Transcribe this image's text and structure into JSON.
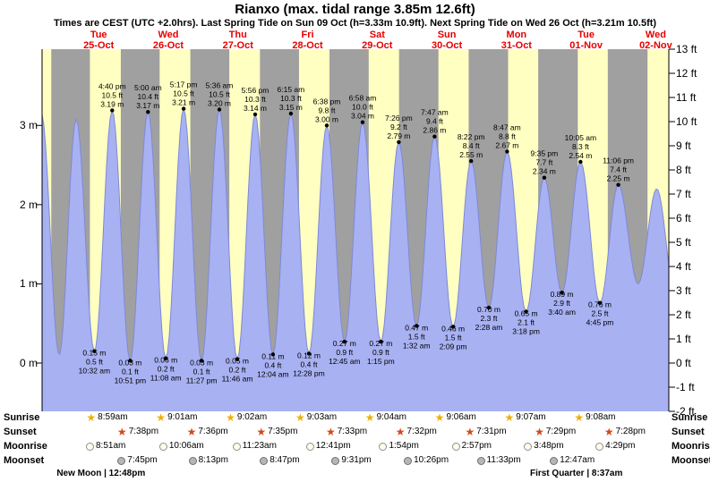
{
  "page": {
    "title": "Rianxo (max. tidal range 3.85m 12.6ft)",
    "subtitle": "Times are CEST (UTC +2.0hrs). Last Spring Tide on Sun 09 Oct (h=3.33m 10.9ft). Next Spring Tide on Wed 26 Oct (h=3.21m 10.5ft)"
  },
  "chart_data": {
    "type": "area",
    "title": "Tide height curve for Rianxo, Tue 25-Oct to Wed 02-Nov",
    "grid": false,
    "legend": false,
    "ylim_m": [
      -0.61,
      3.96
    ],
    "colors": {
      "night_band": "#a0a0a0",
      "day_band": "#ffffc2",
      "tide_fill": "#a8b1f2",
      "tide_stroke": "#7e89d8",
      "day_label": "#e60000",
      "annotation": "#000000"
    },
    "x_axis": {
      "days": [
        {
          "weekday": "Tue",
          "date": "25-Oct"
        },
        {
          "weekday": "Wed",
          "date": "26-Oct"
        },
        {
          "weekday": "Thu",
          "date": "27-Oct"
        },
        {
          "weekday": "Fri",
          "date": "28-Oct"
        },
        {
          "weekday": "Sat",
          "date": "29-Oct"
        },
        {
          "weekday": "Sun",
          "date": "30-Oct"
        },
        {
          "weekday": "Mon",
          "date": "31-Oct"
        },
        {
          "weekday": "Tue",
          "date": "01-Nov"
        },
        {
          "weekday": "Wed",
          "date": "02-Nov"
        }
      ]
    },
    "y_axis_left": {
      "unit": "m",
      "ticks": [
        0,
        1,
        2,
        3
      ],
      "labels": [
        "0 m",
        "1 m",
        "2 m",
        "3 m"
      ]
    },
    "y_axis_right": {
      "unit": "ft",
      "ticks": [
        13,
        12,
        11,
        10,
        9,
        8,
        7,
        6,
        5,
        4,
        3,
        2,
        1,
        0,
        -1,
        -2
      ],
      "labels": [
        "13 ft",
        "12 ft",
        "11 ft",
        "10 ft",
        "9 ft",
        "8 ft",
        "7 ft",
        "6 ft",
        "5 ft",
        "4 ft",
        "3 ft",
        "2 ft",
        "1 ft",
        "0 ft",
        "-1 ft",
        "-2 ft"
      ]
    },
    "daylight": [
      {
        "day": -1,
        "sunrise": null,
        "sunset": "19:40"
      },
      {
        "day": 0,
        "sunrise": "08:59",
        "sunset": "19:38"
      },
      {
        "day": 1,
        "sunrise": "09:01",
        "sunset": "19:36"
      },
      {
        "day": 2,
        "sunrise": "09:02",
        "sunset": "19:35"
      },
      {
        "day": 3,
        "sunrise": "09:03",
        "sunset": "19:33"
      },
      {
        "day": 4,
        "sunrise": "09:04",
        "sunset": "19:32"
      },
      {
        "day": 5,
        "sunrise": "09:06",
        "sunset": "19:31"
      },
      {
        "day": 6,
        "sunrise": "09:07",
        "sunset": "19:29"
      },
      {
        "day": 7,
        "sunrise": "09:08",
        "sunset": "19:28"
      },
      {
        "day": 8,
        "sunrise": "09:10",
        "sunset": "19:27"
      }
    ],
    "tide_events": [
      {
        "day": -1,
        "time": "16:15",
        "type": "high",
        "m": 3.15,
        "estimated": true
      },
      {
        "day": -1,
        "time": "22:25",
        "type": "low",
        "m": 0.1,
        "estimated": true
      },
      {
        "day": 0,
        "time": "04:15",
        "type": "high",
        "m": 3.08,
        "estimated": true
      },
      {
        "day": 0,
        "time": "10:32",
        "type": "low",
        "m": 0.15,
        "m_label": "0.15 m",
        "ft_label": "0.5 ft",
        "time_label": "10:32 am"
      },
      {
        "day": 0,
        "time": "16:40",
        "type": "high",
        "m": 3.19,
        "m_label": "3.19 m",
        "ft_label": "10.5 ft",
        "time_label": "4:40 pm"
      },
      {
        "day": 0,
        "time": "22:51",
        "type": "low",
        "m": 0.03,
        "m_label": "0.03 m",
        "ft_label": "0.1 ft",
        "time_label": "10:51 pm"
      },
      {
        "day": 1,
        "time": "05:00",
        "type": "high",
        "m": 3.17,
        "m_label": "3.17 m",
        "ft_label": "10.4 ft",
        "time_label": "5:00 am"
      },
      {
        "day": 1,
        "time": "11:08",
        "type": "low",
        "m": 0.06,
        "m_label": "0.06 m",
        "ft_label": "0.2 ft",
        "time_label": "11:08 am"
      },
      {
        "day": 1,
        "time": "17:17",
        "type": "high",
        "m": 3.21,
        "m_label": "3.21 m",
        "ft_label": "10.5 ft",
        "time_label": "5:17 pm"
      },
      {
        "day": 1,
        "time": "23:27",
        "type": "low",
        "m": 0.03,
        "m_label": "0.03 m",
        "ft_label": "0.1 ft",
        "time_label": "11:27 pm"
      },
      {
        "day": 2,
        "time": "05:36",
        "type": "high",
        "m": 3.2,
        "m_label": "3.20 m",
        "ft_label": "10.5 ft",
        "time_label": "5:36 am"
      },
      {
        "day": 2,
        "time": "11:46",
        "type": "low",
        "m": 0.05,
        "m_label": "0.05 m",
        "ft_label": "0.2 ft",
        "time_label": "11:46 am"
      },
      {
        "day": 2,
        "time": "17:56",
        "type": "high",
        "m": 3.14,
        "m_label": "3.14 m",
        "ft_label": "10.3 ft",
        "time_label": "5:56 pm"
      },
      {
        "day": 3,
        "time": "00:04",
        "type": "low",
        "m": 0.11,
        "m_label": "0.11 m",
        "ft_label": "0.4 ft",
        "time_label": "12:04 am"
      },
      {
        "day": 3,
        "time": "06:15",
        "type": "high",
        "m": 3.15,
        "m_label": "3.15 m",
        "ft_label": "10.3 ft",
        "time_label": "6:15 am"
      },
      {
        "day": 3,
        "time": "12:28",
        "type": "low",
        "m": 0.12,
        "m_label": "0.12 m",
        "ft_label": "0.4 ft",
        "time_label": "12:28 pm"
      },
      {
        "day": 3,
        "time": "18:38",
        "type": "high",
        "m": 3.0,
        "m_label": "3.00 m",
        "ft_label": "9.8 ft",
        "time_label": "6:38 pm"
      },
      {
        "day": 4,
        "time": "00:45",
        "type": "low",
        "m": 0.27,
        "m_label": "0.27 m",
        "ft_label": "0.9 ft",
        "time_label": "12:45 am"
      },
      {
        "day": 4,
        "time": "06:58",
        "type": "high",
        "m": 3.04,
        "m_label": "3.04 m",
        "ft_label": "10.0 ft",
        "time_label": "6:58 am"
      },
      {
        "day": 4,
        "time": "13:15",
        "type": "low",
        "m": 0.27,
        "m_label": "0.27 m",
        "ft_label": "0.9 ft",
        "time_label": "1:15 pm"
      },
      {
        "day": 4,
        "time": "19:26",
        "type": "high",
        "m": 2.79,
        "m_label": "2.79 m",
        "ft_label": "9.2 ft",
        "time_label": "7:26 pm"
      },
      {
        "day": 5,
        "time": "01:32",
        "type": "low",
        "m": 0.47,
        "m_label": "0.47 m",
        "ft_label": "1.5 ft",
        "time_label": "1:32 am"
      },
      {
        "day": 5,
        "time": "07:47",
        "type": "high",
        "m": 2.86,
        "m_label": "2.86 m",
        "ft_label": "9.4 ft",
        "time_label": "7:47 am"
      },
      {
        "day": 5,
        "time": "14:09",
        "type": "low",
        "m": 0.46,
        "m_label": "0.46 m",
        "ft_label": "1.5 ft",
        "time_label": "2:09 pm"
      },
      {
        "day": 5,
        "time": "20:22",
        "type": "high",
        "m": 2.55,
        "m_label": "2.55 m",
        "ft_label": "8.4 ft",
        "time_label": "8:22 pm"
      },
      {
        "day": 6,
        "time": "02:28",
        "type": "low",
        "m": 0.7,
        "m_label": "0.70 m",
        "ft_label": "2.3 ft",
        "time_label": "2:28 am"
      },
      {
        "day": 6,
        "time": "08:47",
        "type": "high",
        "m": 2.67,
        "m_label": "2.67 m",
        "ft_label": "8.8 ft",
        "time_label": "8:47 am"
      },
      {
        "day": 6,
        "time": "15:18",
        "type": "low",
        "m": 0.65,
        "m_label": "0.65 m",
        "ft_label": "2.1 ft",
        "time_label": "3:18 pm"
      },
      {
        "day": 6,
        "time": "21:35",
        "type": "high",
        "m": 2.34,
        "m_label": "2.34 m",
        "ft_label": "7.7 ft",
        "time_label": "9:35 pm"
      },
      {
        "day": 7,
        "time": "03:40",
        "type": "low",
        "m": 0.89,
        "m_label": "0.89 m",
        "ft_label": "2.9 ft",
        "time_label": "3:40 am"
      },
      {
        "day": 7,
        "time": "10:05",
        "type": "high",
        "m": 2.54,
        "m_label": "2.54 m",
        "ft_label": "8.3 ft",
        "time_label": "10:05 am"
      },
      {
        "day": 7,
        "time": "16:45",
        "type": "low",
        "m": 0.76,
        "m_label": "0.76 m",
        "ft_label": "2.5 ft",
        "time_label": "4:45 pm"
      },
      {
        "day": 7,
        "time": "23:06",
        "type": "high",
        "m": 2.25,
        "m_label": "2.25 m",
        "ft_label": "7.4 ft",
        "time_label": "11:06 pm"
      },
      {
        "day": 8,
        "time": "05:55",
        "type": "low",
        "m": 1.0,
        "estimated": true
      },
      {
        "day": 8,
        "time": "12:20",
        "type": "high",
        "m": 2.2,
        "estimated": true
      },
      {
        "day": 8,
        "time": "18:50",
        "type": "low",
        "m": 0.85,
        "estimated": true
      }
    ]
  },
  "almanac": {
    "colors": {
      "sunrise_star": "#f0b000",
      "sunset_star": "#d2491a",
      "moonrise_fill": "#fffde9",
      "moonrise_border": "#8f8f8f",
      "moonset_fill": "#b6b6b6",
      "moonset_border": "#6f6f6f"
    },
    "rows": [
      {
        "label": "Sunrise",
        "icon": "sunrise-star-icon",
        "entries": [
          {
            "day": 0,
            "time": "08:59",
            "label": "8:59am"
          },
          {
            "day": 1,
            "time": "09:01",
            "label": "9:01am"
          },
          {
            "day": 2,
            "time": "09:02",
            "label": "9:02am"
          },
          {
            "day": 3,
            "time": "09:03",
            "label": "9:03am"
          },
          {
            "day": 4,
            "time": "09:04",
            "label": "9:04am"
          },
          {
            "day": 5,
            "time": "09:06",
            "label": "9:06am"
          },
          {
            "day": 6,
            "time": "09:07",
            "label": "9:07am"
          },
          {
            "day": 7,
            "time": "09:08",
            "label": "9:08am"
          }
        ]
      },
      {
        "label": "Sunset",
        "icon": "sunset-star-icon",
        "entries": [
          {
            "day": 0,
            "time": "19:38",
            "label": "7:38pm"
          },
          {
            "day": 1,
            "time": "19:36",
            "label": "7:36pm"
          },
          {
            "day": 2,
            "time": "19:35",
            "label": "7:35pm"
          },
          {
            "day": 3,
            "time": "19:33",
            "label": "7:33pm"
          },
          {
            "day": 4,
            "time": "19:32",
            "label": "7:32pm"
          },
          {
            "day": 5,
            "time": "19:31",
            "label": "7:31pm"
          },
          {
            "day": 6,
            "time": "19:29",
            "label": "7:29pm"
          },
          {
            "day": 7,
            "time": "19:28",
            "label": "7:28pm"
          }
        ]
      },
      {
        "label": "Moonrise",
        "icon": "moonrise-icon",
        "entries": [
          {
            "day": 0,
            "time": "08:51",
            "label": "8:51am"
          },
          {
            "day": 1,
            "time": "10:06",
            "label": "10:06am"
          },
          {
            "day": 2,
            "time": "11:23",
            "label": "11:23am"
          },
          {
            "day": 3,
            "time": "12:41",
            "label": "12:41pm"
          },
          {
            "day": 4,
            "time": "13:54",
            "label": "1:54pm"
          },
          {
            "day": 5,
            "time": "14:57",
            "label": "2:57pm"
          },
          {
            "day": 6,
            "time": "15:48",
            "label": "3:48pm"
          },
          {
            "day": 7,
            "time": "16:29",
            "label": "4:29pm"
          }
        ]
      },
      {
        "label": "Moonset",
        "icon": "moonset-icon",
        "entries": [
          {
            "day": 0,
            "time": "19:45",
            "label": "7:45pm"
          },
          {
            "day": 1,
            "time": "20:13",
            "label": "8:13pm"
          },
          {
            "day": 2,
            "time": "20:47",
            "label": "8:47pm"
          },
          {
            "day": 3,
            "time": "21:31",
            "label": "9:31pm"
          },
          {
            "day": 4,
            "time": "22:26",
            "label": "10:26pm"
          },
          {
            "day": 5,
            "time": "23:33",
            "label": "11:33pm"
          },
          {
            "day": 7,
            "time": "00:47",
            "label": "12:47am"
          }
        ]
      }
    ],
    "phases": [
      {
        "day": 0,
        "time": "12:48",
        "label": "New Moon | 12:48pm"
      },
      {
        "day": 7,
        "time": "08:37",
        "label": "First Quarter | 8:37am"
      }
    ]
  }
}
